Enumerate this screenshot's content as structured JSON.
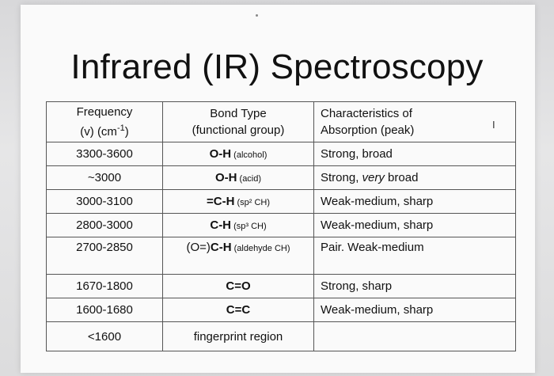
{
  "title": "Infrared (IR) Spectroscopy",
  "table": {
    "headers": {
      "frequency_line1": "Frequency",
      "frequency_line2": "(v) (cm",
      "frequency_sup": "-1",
      "frequency_close": ")",
      "bond_line1": "Bond Type",
      "bond_line2": "(functional group)",
      "char_line1": "Characteristics of",
      "char_line2": "Absorption (peak)"
    },
    "rows": [
      {
        "freq": "3300-3600",
        "bond_main": "O-H",
        "bond_note": " (alcohol)",
        "char": "Strong, broad"
      },
      {
        "freq": "~3000",
        "bond_main": "O-H",
        "bond_note": " (acid)",
        "char_a": "Strong, ",
        "char_b": "very",
        "char_c": " broad"
      },
      {
        "freq": "3000-3100",
        "bond_main": "=C-H",
        "bond_note": " (sp² CH)",
        "char": "Weak-medium, sharp"
      },
      {
        "freq": "2800-3000",
        "bond_main": "C-H",
        "bond_note": " (sp³ CH)",
        "char": "Weak-medium, sharp"
      },
      {
        "freq": "2700-2850",
        "bond_pre": "(O=)",
        "bond_main": "C-H",
        "bond_note": " (aldehyde CH)",
        "char": "Pair.  Weak-medium"
      },
      {
        "freq": "1670-1800",
        "bond_main": "C=O",
        "char": "Strong, sharp"
      },
      {
        "freq": "1600-1680",
        "bond_main": "C=C",
        "char": "Weak-medium, sharp"
      },
      {
        "freq": "<1600",
        "bond_plain": "fingerprint region",
        "char": ""
      }
    ]
  },
  "cursor_glyph": "I"
}
